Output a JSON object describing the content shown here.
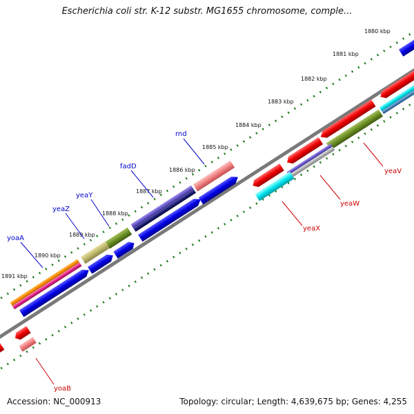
{
  "title": "Escherichia coli str. K-12 substr. MG1655 chromosome, comple...",
  "footer": {
    "accession": "Accession: NC_000913",
    "topology": "Topology: circular; Length: 4,639,675 bp; Genes: 4,255"
  },
  "ticks": [
    "1880 kbp",
    "1881 kbp",
    "1882 kbp",
    "1883 kbp",
    "1884 kbp",
    "1885 kbp",
    "1886 kbp",
    "1887 kbp",
    "1888 kbp",
    "1889 kbp",
    "1890 kbp",
    "1891 kbp"
  ],
  "gene_labels": {
    "forward": [
      {
        "name": "rnd",
        "color": "#0000cc"
      },
      {
        "name": "fadD",
        "color": "#0000cc"
      },
      {
        "name": "yeaY",
        "color": "#0000cc"
      },
      {
        "name": "yeaZ",
        "color": "#0000cc"
      },
      {
        "name": "yoaA",
        "color": "#0000cc"
      }
    ],
    "reverse": [
      {
        "name": "yeaV",
        "color": "#cc0000"
      },
      {
        "name": "yeaW",
        "color": "#cc0000"
      },
      {
        "name": "yeaX",
        "color": "#cc0000"
      },
      {
        "name": "yoaB",
        "color": "#cc0000"
      }
    ]
  },
  "colors": {
    "backbone": "#808080",
    "tick_dots": "#1a7a1a",
    "forward_cds": "#0000e6",
    "reverse_cds": "#e60000"
  }
}
